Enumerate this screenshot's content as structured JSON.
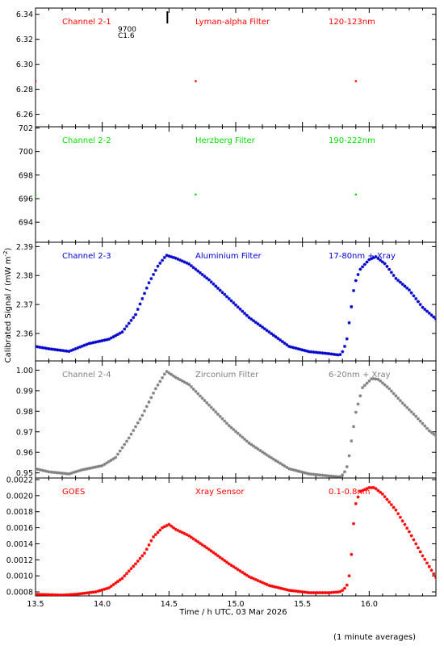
{
  "chart_data": {
    "type": "scatter",
    "ylabel": "Calibrated Signal / (mW m",
    "ylabel_sup": "-2",
    "ylabel_close": ")",
    "xlabel": "Time / h UTC, 03 Mar 2026",
    "footnote": "(1 minute averages)",
    "x_range": [
      13.5,
      16.5
    ],
    "x_ticks": [
      "13.5",
      "14.0",
      "14.5",
      "15.0",
      "15.5",
      "16.0"
    ],
    "flare_marker": {
      "x": 14.5,
      "labels": [
        "9700",
        "C1.6"
      ]
    },
    "panels": [
      {
        "channel": "Channel 2-1",
        "filter": "Lyman-alpha Filter",
        "band": "120-123nm",
        "color": "#ff0000",
        "ylim": [
          6.25,
          6.345
        ],
        "y_ticks": [
          "6.34",
          "6.32",
          "6.30",
          "6.28",
          "6.26"
        ],
        "y_tick_values": [
          6.34,
          6.32,
          6.3,
          6.28,
          6.26
        ],
        "curve": [
          [
            13.5,
            6.2865
          ],
          [
            16.5,
            6.2865
          ]
        ]
      },
      {
        "channel": "Channel 2-2",
        "filter": "Herzberg Filter",
        "band": "190-222nm",
        "color": "#00dd00",
        "ylim": [
          692.3,
          702.1
        ],
        "y_ticks": [
          "702",
          "700",
          "698",
          "696",
          "694"
        ],
        "y_tick_values": [
          702,
          700,
          698,
          696,
          694
        ],
        "curve": [
          [
            13.5,
            696.35
          ],
          [
            16.5,
            696.35
          ]
        ]
      },
      {
        "channel": "Channel 2-3",
        "filter": "Aluminium Filter",
        "band": "17-80nm + Xray",
        "color": "#0000cc",
        "ylim": [
          2.3505,
          2.3915
        ],
        "y_ticks": [
          "2.39",
          "2.38",
          "2.37",
          "2.36"
        ],
        "y_tick_values": [
          2.39,
          2.38,
          2.37,
          2.36
        ],
        "curve": [
          [
            13.5,
            2.3555
          ],
          [
            13.6,
            2.3547
          ],
          [
            13.75,
            2.3538
          ],
          [
            13.9,
            2.3565
          ],
          [
            14.05,
            2.358
          ],
          [
            14.15,
            2.3605
          ],
          [
            14.25,
            2.3665
          ],
          [
            14.35,
            2.3775
          ],
          [
            14.42,
            2.3835
          ],
          [
            14.48,
            2.387
          ],
          [
            14.55,
            2.386
          ],
          [
            14.65,
            2.384
          ],
          [
            14.8,
            2.3785
          ],
          [
            14.95,
            2.372
          ],
          [
            15.1,
            2.3655
          ],
          [
            15.25,
            2.3605
          ],
          [
            15.4,
            2.3555
          ],
          [
            15.55,
            2.3537
          ],
          [
            15.7,
            2.353
          ],
          [
            15.78,
            2.3525
          ],
          [
            15.8,
            2.3537
          ],
          [
            15.83,
            2.357
          ],
          [
            15.86,
            2.367
          ],
          [
            15.89,
            2.377
          ],
          [
            15.93,
            2.382
          ],
          [
            16.0,
            2.3855
          ],
          [
            16.05,
            2.3865
          ],
          [
            16.12,
            2.384
          ],
          [
            16.2,
            2.379
          ],
          [
            16.3,
            2.375
          ],
          [
            16.4,
            2.369
          ],
          [
            16.5,
            2.365
          ]
        ]
      },
      {
        "channel": "Channel 2-4",
        "filter": "Zirconium Filter",
        "band": "6-20nm + Xray",
        "color": "#808080",
        "ylim": [
          0.9475,
          1.0045
        ],
        "y_ticks": [
          "1.00",
          "0.99",
          "0.98",
          "0.97",
          "0.96",
          "0.95"
        ],
        "y_tick_values": [
          1.0,
          0.99,
          0.98,
          0.97,
          0.96,
          0.95
        ],
        "curve": [
          [
            13.5,
            0.952
          ],
          [
            13.6,
            0.9505
          ],
          [
            13.75,
            0.9495
          ],
          [
            13.85,
            0.9515
          ],
          [
            14.0,
            0.9535
          ],
          [
            14.1,
            0.9575
          ],
          [
            14.2,
            0.967
          ],
          [
            14.3,
            0.978
          ],
          [
            14.4,
            0.991
          ],
          [
            14.48,
            0.9995
          ],
          [
            14.55,
            0.9965
          ],
          [
            14.65,
            0.993
          ],
          [
            14.8,
            0.983
          ],
          [
            14.95,
            0.973
          ],
          [
            15.1,
            0.9645
          ],
          [
            15.25,
            0.958
          ],
          [
            15.4,
            0.952
          ],
          [
            15.55,
            0.9495
          ],
          [
            15.7,
            0.9485
          ],
          [
            15.78,
            0.948
          ],
          [
            15.81,
            0.9495
          ],
          [
            15.84,
            0.954
          ],
          [
            15.87,
            0.967
          ],
          [
            15.9,
            0.9795
          ],
          [
            15.95,
            0.9915
          ],
          [
            16.02,
            0.996
          ],
          [
            16.07,
            0.9955
          ],
          [
            16.15,
            0.991
          ],
          [
            16.25,
            0.984
          ],
          [
            16.35,
            0.9775
          ],
          [
            16.45,
            0.9705
          ],
          [
            16.5,
            0.968
          ]
        ]
      },
      {
        "channel": "GOES",
        "filter": "Xray Sensor",
        "band": "0.1-0.8nm",
        "color": "#ff0000",
        "ylim": [
          0.00075,
          0.00222
        ],
        "y_ticks": [
          "0.0022",
          "0.0020",
          "0.0018",
          "0.0016",
          "0.0014",
          "0.0012",
          "0.0010",
          "0.0008"
        ],
        "y_tick_values": [
          0.0022,
          0.002,
          0.0018,
          0.0016,
          0.0014,
          0.0012,
          0.001,
          0.0008
        ],
        "curve": [
          [
            13.5,
            0.00077
          ],
          [
            13.7,
            0.00076
          ],
          [
            13.8,
            0.00077
          ],
          [
            13.95,
            0.0008
          ],
          [
            14.05,
            0.00085
          ],
          [
            14.15,
            0.00097
          ],
          [
            14.25,
            0.00115
          ],
          [
            14.32,
            0.00129
          ],
          [
            14.38,
            0.00148
          ],
          [
            14.45,
            0.0016
          ],
          [
            14.5,
            0.00164
          ],
          [
            14.55,
            0.00158
          ],
          [
            14.65,
            0.0015
          ],
          [
            14.8,
            0.00133
          ],
          [
            14.95,
            0.00115
          ],
          [
            15.1,
            0.00099
          ],
          [
            15.25,
            0.00088
          ],
          [
            15.4,
            0.00082
          ],
          [
            15.55,
            0.00079
          ],
          [
            15.7,
            0.00079
          ],
          [
            15.78,
            0.0008
          ],
          [
            15.81,
            0.00083
          ],
          [
            15.84,
            0.0009
          ],
          [
            15.86,
            0.0011
          ],
          [
            15.88,
            0.0016
          ],
          [
            15.9,
            0.0019
          ],
          [
            15.93,
            0.00205
          ],
          [
            16.0,
            0.0021
          ],
          [
            16.04,
            0.0021
          ],
          [
            16.1,
            0.00202
          ],
          [
            16.2,
            0.00182
          ],
          [
            16.3,
            0.00155
          ],
          [
            16.4,
            0.00125
          ],
          [
            16.5,
            0.00098
          ]
        ]
      }
    ]
  }
}
